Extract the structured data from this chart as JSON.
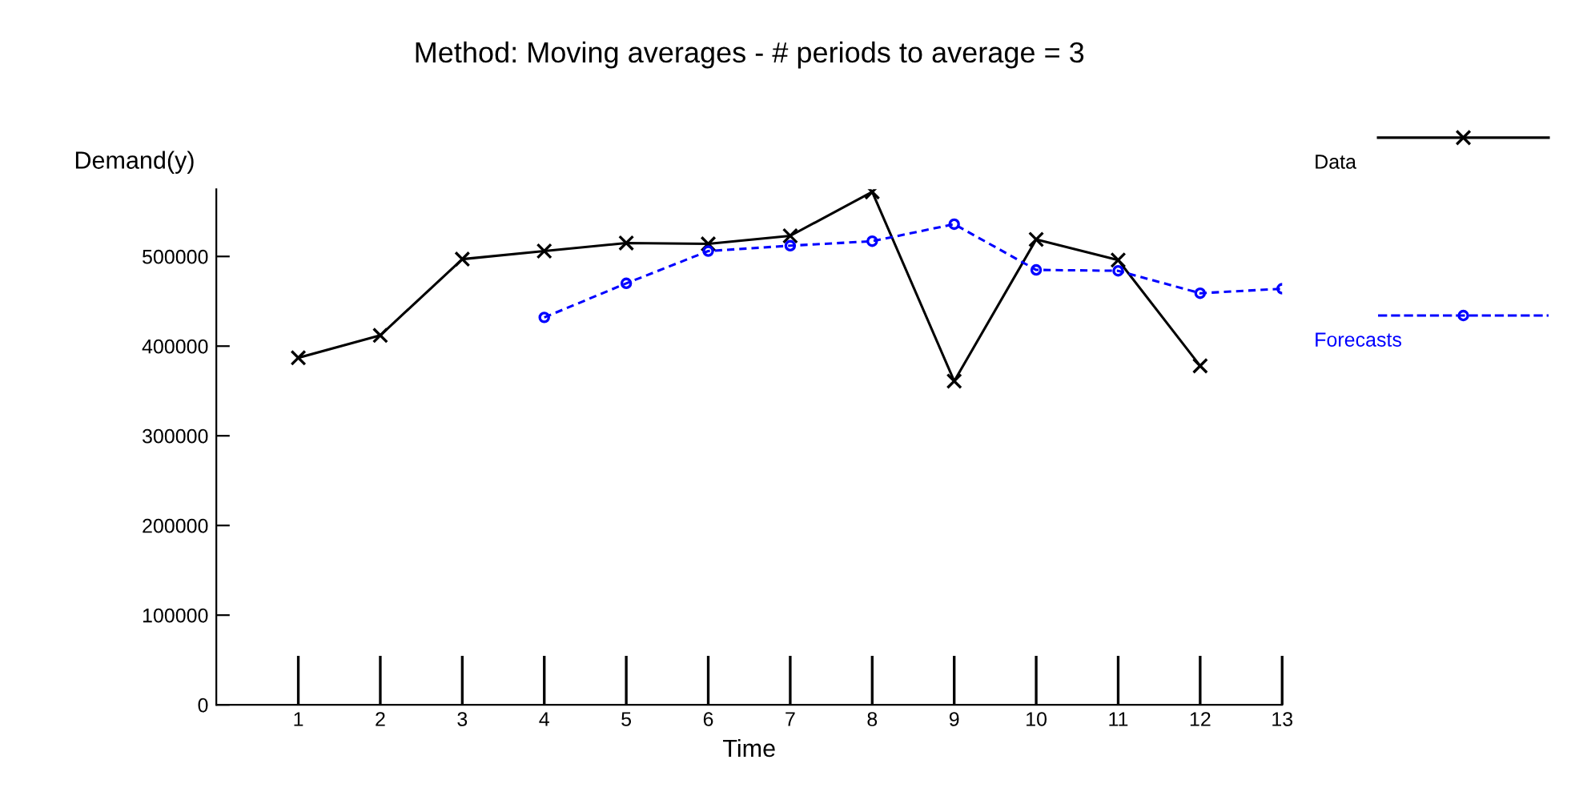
{
  "chart_data": {
    "type": "line",
    "title": "Method: Moving averages - # periods to average = 3",
    "xlabel": "Time",
    "ylabel": "Demand(y)",
    "xlim": [
      0,
      13
    ],
    "xticks": [
      1,
      2,
      3,
      4,
      5,
      6,
      7,
      8,
      9,
      10,
      11,
      12,
      13
    ],
    "ylim": [
      0,
      575000
    ],
    "yticks": [
      0,
      100000,
      200000,
      300000,
      400000,
      500000
    ],
    "grid": false,
    "legend": "right",
    "series": [
      {
        "name": "Data",
        "color": "#000000",
        "marker": "cross",
        "line_style": "solid",
        "x": [
          1,
          2,
          3,
          4,
          5,
          6,
          7,
          8,
          9,
          10,
          11,
          12
        ],
        "values": [
          387000,
          412000,
          497000,
          506000,
          515000,
          514000,
          523000,
          572000,
          361000,
          519000,
          496000,
          378000
        ]
      },
      {
        "name": "Forecasts",
        "color": "#0000ff",
        "marker": "circle",
        "line_style": "dashed",
        "x": [
          4,
          5,
          6,
          7,
          8,
          9,
          10,
          11,
          12,
          13
        ],
        "values": [
          432000,
          470000,
          506000,
          512000,
          517000,
          536000,
          485000,
          484000,
          459000,
          464000
        ]
      }
    ]
  }
}
